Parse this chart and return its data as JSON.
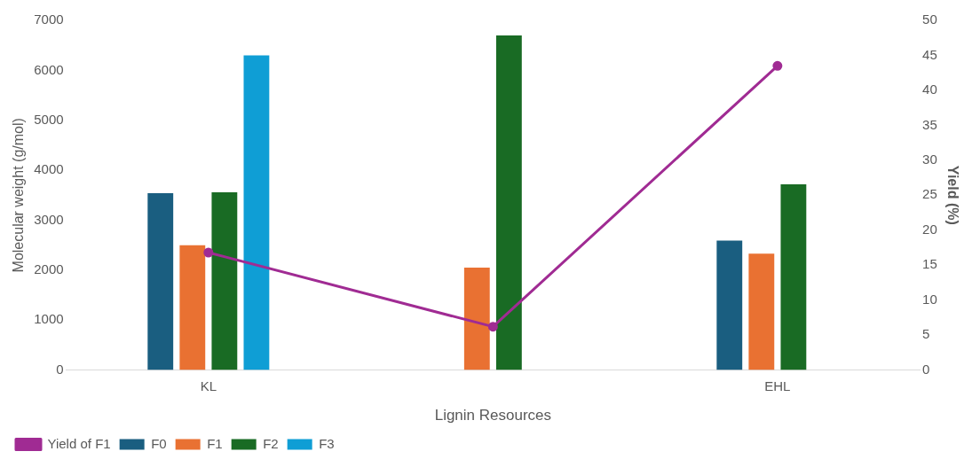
{
  "chart_data": {
    "type": "bar",
    "xlabel": "Lignin Resources",
    "ylabel": "Molecular weight (g/mol)",
    "y2label": "Yield (%)",
    "categories": [
      "KL",
      null,
      "EHL"
    ],
    "series": [
      {
        "name": "F0",
        "color": "#1a5e80",
        "values": [
          3540,
          null,
          2590
        ]
      },
      {
        "name": "F1",
        "color": "#e97132",
        "values": [
          2500,
          2050,
          2330
        ]
      },
      {
        "name": "F2",
        "color": "#196b24",
        "values": [
          3560,
          6700,
          3720
        ]
      },
      {
        "name": "F3",
        "color": "#0f9ed5",
        "values": [
          6300,
          null,
          null
        ]
      },
      {
        "name": "Yield of F1",
        "type": "line",
        "axis": "y2",
        "color": "#a02b93",
        "values": [
          16.8,
          6.2,
          43.5
        ],
        "marker": "circle"
      }
    ],
    "ylim": [
      0,
      7000
    ],
    "yticks": [
      0,
      1000,
      2000,
      3000,
      4000,
      5000,
      6000,
      7000
    ],
    "y2lim": [
      0,
      50
    ],
    "y2ticks": [
      0,
      5,
      10,
      15,
      20,
      25,
      30,
      35,
      40,
      45,
      50
    ],
    "legend": "bottom left",
    "grid": false
  }
}
